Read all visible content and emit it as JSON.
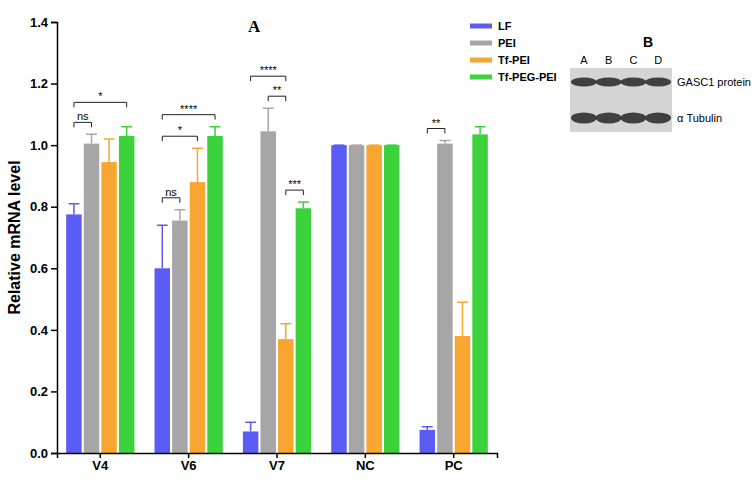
{
  "chart_data": {
    "type": "bar",
    "title": "A",
    "y_label": "Relative mRNA level",
    "categories": [
      "V4",
      "V6",
      "V7",
      "NC",
      "PC"
    ],
    "series": [
      {
        "name": "LF",
        "color": "#5b5bf5",
        "values": [
          0.775,
          0.6,
          0.07,
          1.0,
          0.075
        ],
        "errors": [
          0.035,
          0.14,
          0.03,
          0,
          0.01
        ]
      },
      {
        "name": "PEI",
        "color": "#a6a6a6",
        "values": [
          1.005,
          0.755,
          1.045,
          1.0,
          1.005
        ],
        "errors": [
          0.03,
          0.035,
          0.075,
          0,
          0.01
        ]
      },
      {
        "name": "Tf-PEI",
        "color": "#f8a532",
        "values": [
          0.945,
          0.88,
          0.37,
          1.0,
          0.38
        ],
        "errors": [
          0.075,
          0.11,
          0.05,
          0,
          0.11
        ]
      },
      {
        "name": "Tf-PEG-PEI",
        "color": "#3bd23b",
        "values": [
          1.03,
          1.03,
          0.795,
          1.0,
          1.035
        ],
        "errors": [
          0.03,
          0.03,
          0.02,
          0,
          0.025
        ]
      }
    ],
    "ylim": [
      0,
      1.4
    ],
    "yticks": [
      {
        "value": 0,
        "label": "0.0"
      },
      {
        "value": 0.2,
        "label": "0.2"
      },
      {
        "value": 0.4,
        "label": "0.4"
      },
      {
        "value": 0.6,
        "label": "0.6"
      },
      {
        "value": 0.8,
        "label": "0.8"
      },
      {
        "value": 1.0,
        "label": "1.0"
      },
      {
        "value": 1.2,
        "label": "1.2"
      },
      {
        "value": 1.4,
        "label": "1.4"
      }
    ],
    "legend": "upper right",
    "grid": false,
    "annotations": [
      {
        "category": "V4",
        "from": "LF",
        "to": "PEI",
        "label": "ns"
      },
      {
        "category": "V4",
        "from": "LF",
        "to": "Tf-PEG-PEI",
        "label": "*"
      },
      {
        "category": "V6",
        "from": "LF",
        "to": "PEI",
        "label": "ns"
      },
      {
        "category": "V6",
        "from": "LF",
        "to": "Tf-PEI",
        "label": "*"
      },
      {
        "category": "V6",
        "from": "LF",
        "to": "Tf-PEG-PEI",
        "label": "****"
      },
      {
        "category": "V7",
        "from": "Tf-PEI",
        "to": "Tf-PEG-PEI",
        "label": "***"
      },
      {
        "category": "V7",
        "from": "PEI",
        "to": "Tf-PEI",
        "label": "**"
      },
      {
        "category": "V7",
        "from": "LF",
        "to": "Tf-PEI",
        "label": "****"
      },
      {
        "category": "PC",
        "from": "LF",
        "to": "PEI",
        "label": "**"
      }
    ]
  },
  "blot": {
    "title": "B",
    "lanes": [
      "A",
      "B",
      "C",
      "D"
    ],
    "rows": [
      "GASC1 protein",
      "α Tubulin"
    ]
  }
}
